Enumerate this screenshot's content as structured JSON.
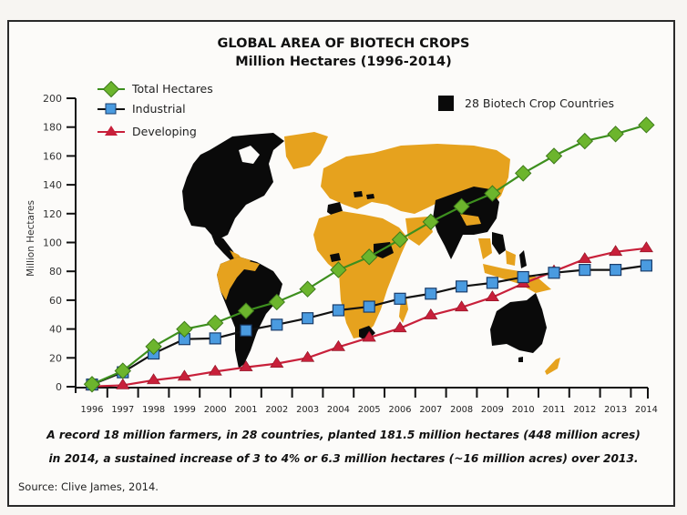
{
  "title": "GLOBAL AREA OF BIOTECH CROPS",
  "subtitle": "Million Hectares (1996-2014)",
  "legend": {
    "total": "Total Hectares",
    "industrial": "Industrial",
    "developing": "Developing",
    "countries": "28 Biotech Crop Countries"
  },
  "y_axis_label": "Million Hectares",
  "caption_line1": "A record 18 million farmers, in 28 countries, planted 181.5 million hectares (448 million acres)",
  "caption_line2": "in 2014, a sustained increase of 3 to 4% or 6.3 million hectares (~16 million acres) over 2013.",
  "source": "Source: Clive James, 2014.",
  "colors": {
    "total": "#6cb52d",
    "industrial": "#4a9be0",
    "developing": "#c8203a",
    "biotech_countries": "#0a0a0a",
    "other_countries": "#e6a21e"
  },
  "chart_data": {
    "type": "line",
    "title": "GLOBAL AREA OF BIOTECH CROPS",
    "subtitle": "Million Hectares (1996-2014)",
    "xlabel": "",
    "ylabel": "Million Hectares",
    "ylim": [
      0,
      200
    ],
    "yticks": [
      0,
      20,
      40,
      60,
      80,
      100,
      120,
      140,
      160,
      180,
      200
    ],
    "x": [
      "1996",
      "1997",
      "1998",
      "1999",
      "2000",
      "2001",
      "2002",
      "2003",
      "2004",
      "2005",
      "2006",
      "2007",
      "2008",
      "2009",
      "2010",
      "2011",
      "2012",
      "2013",
      "2014"
    ],
    "series": [
      {
        "name": "Total Hectares",
        "marker": "diamond",
        "values": [
          1.7,
          11,
          27.8,
          39.9,
          44.2,
          52.6,
          58.7,
          67.7,
          81,
          90,
          102,
          114.3,
          125,
          134,
          148,
          160,
          170.3,
          175.2,
          181.5
        ]
      },
      {
        "name": "Industrial",
        "marker": "square",
        "values": [
          1.5,
          10,
          23,
          33,
          33.5,
          39,
          43,
          47.5,
          53,
          55.5,
          61,
          64.5,
          69.5,
          72,
          76,
          79,
          81,
          81,
          84
        ]
      },
      {
        "name": "Developing",
        "marker": "triangle",
        "values": [
          0.2,
          1,
          4.5,
          7,
          10.5,
          13.5,
          16,
          20,
          27.5,
          34,
          40.5,
          49.5,
          55,
          62,
          71.5,
          80,
          88.5,
          93.5,
          96
        ]
      }
    ],
    "legend": [
      "Total Hectares",
      "Industrial",
      "Developing",
      "28 Biotech Crop Countries"
    ],
    "legend_position": "upper-left",
    "grid": false,
    "background": "world map: biotech crop countries in black, others in orange"
  }
}
